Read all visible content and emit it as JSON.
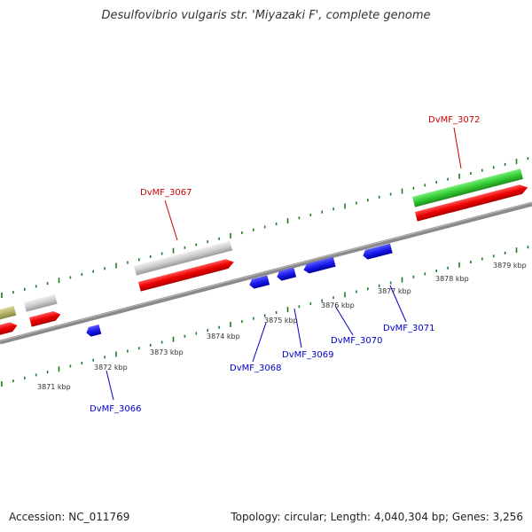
{
  "title": "Desulfovibrio vulgaris str. 'Miyazaki F', complete genome",
  "accession_label": "Accession: NC_011769",
  "summary_label": "Topology: circular; Length: 4,040,304 bp; Genes: 3,256",
  "colors": {
    "backbone": "#8a8a8a",
    "tick": "#1f7a1f",
    "top_label": "#cc0000",
    "bottom_label": "#0000cc",
    "cds_red": "#ee0000",
    "gene_grey": "#cccccc",
    "gene_green": "#33cc33",
    "gene_olive": "#b5b36a",
    "gene_blue": "#1a1aee"
  },
  "scale_labels": [
    "3871 kbp",
    "3872 kbp",
    "3873 kbp",
    "3874 kbp",
    "3875 kbp",
    "3876 kbp",
    "3877 kbp",
    "3878 kbp",
    "3879 kbp"
  ],
  "gene_labels": {
    "top": [
      "DvMF_3067",
      "DvMF_3072"
    ],
    "bottom": [
      "DvMF_3066",
      "DvMF_3068",
      "DvMF_3069",
      "DvMF_3070",
      "DvMF_3071"
    ]
  }
}
